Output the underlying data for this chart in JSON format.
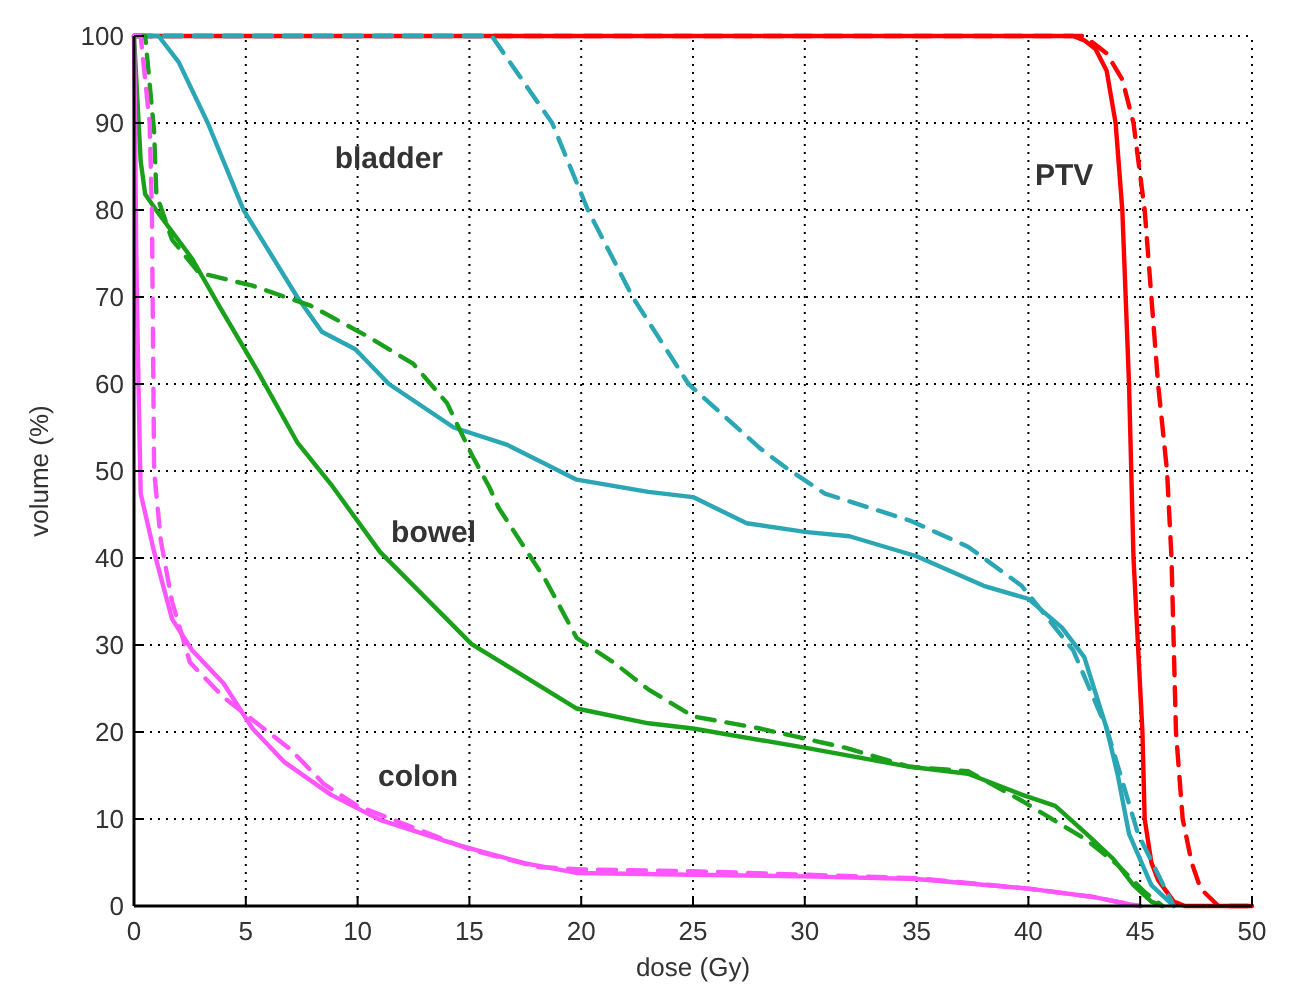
{
  "chart_data": {
    "type": "line",
    "xlabel": "dose (Gy)",
    "ylabel": "volume (%)",
    "xlim": [
      0,
      50
    ],
    "ylim": [
      0,
      100
    ],
    "xticks": [
      0,
      5,
      10,
      15,
      20,
      25,
      30,
      35,
      40,
      45,
      50
    ],
    "yticks": [
      0,
      10,
      20,
      30,
      40,
      50,
      60,
      70,
      80,
      90,
      100
    ],
    "grid": true,
    "marker": "none",
    "series": [
      {
        "color": "#ff0000",
        "line_style": "solid",
        "x": [
          0,
          42,
          42.5,
          43,
          43.5,
          43.9,
          44.2,
          44.5,
          44.7,
          45.1,
          45.2,
          45.5,
          45.8,
          46.5,
          47,
          50
        ],
        "values": [
          100,
          100,
          99.5,
          98.5,
          96,
          90,
          80,
          60,
          40,
          20,
          10,
          5,
          3,
          0.5,
          0,
          0
        ]
      },
      {
        "color": "#ff0000",
        "line_style": "dashed",
        "x": [
          0,
          42.5,
          43.5,
          44.2,
          44.7,
          45.2,
          45.8,
          46.2,
          46.4,
          46.6,
          46.9,
          47.3,
          47.7,
          48.5,
          50
        ],
        "values": [
          100,
          100,
          98,
          95,
          90,
          80,
          60,
          50,
          40,
          20,
          10,
          5,
          2,
          0,
          0
        ]
      },
      {
        "color": "#2aa6b4",
        "line_style": "solid",
        "x": [
          0,
          1.1,
          2,
          3.3,
          4.9,
          7.3,
          8.4,
          9.9,
          11.4,
          14.3,
          16.7,
          19.8,
          23,
          25,
          27.4,
          30,
          32,
          35,
          38,
          40,
          41.5,
          42.5,
          43.5,
          44,
          44.5,
          45.5,
          46.5
        ],
        "values": [
          100,
          100,
          97,
          90,
          80,
          70,
          66,
          64,
          60,
          55,
          53,
          49,
          47.6,
          47,
          44,
          43,
          42.5,
          40.2,
          36.8,
          35.3,
          32,
          28.6,
          20.4,
          15,
          8.3,
          2.4,
          0
        ]
      },
      {
        "color": "#2aa6b4",
        "line_style": "dashed",
        "x": [
          0,
          16,
          18.7,
          20.3,
          22.3,
          24.8,
          28,
          29.2,
          30.9,
          34.7,
          37.3,
          39.7,
          42,
          43.5,
          44.9,
          46.5
        ],
        "values": [
          100,
          100,
          90,
          80,
          70,
          60,
          52.6,
          50.3,
          47.4,
          44.3,
          41.3,
          36.8,
          29.4,
          20.4,
          8.3,
          0
        ]
      },
      {
        "color": "#1aa01a",
        "line_style": "solid",
        "x": [
          0,
          0.3,
          0.5,
          1.1,
          2.6,
          3.8,
          5.5,
          7.3,
          8.8,
          11,
          15.1,
          19.8,
          23,
          25,
          30,
          34.7,
          37.3,
          39.7,
          41.2,
          42.6,
          43.8,
          44.7,
          45.5,
          46
        ],
        "values": [
          100,
          85.6,
          81.8,
          79.6,
          74.4,
          69,
          61.6,
          53.3,
          48.5,
          40.7,
          30.1,
          22.7,
          21,
          20.4,
          18.2,
          16,
          15.2,
          12.8,
          11.5,
          8.3,
          5.4,
          2.4,
          0.5,
          0
        ]
      },
      {
        "color": "#1aa01a",
        "line_style": "dashed",
        "x": [
          0,
          0.5,
          0.9,
          1,
          1.7,
          2.9,
          5.3,
          7.9,
          10.5,
          12.5,
          14,
          15.1,
          15.9,
          16.3,
          18.4,
          19.8,
          21.5,
          23,
          25,
          28,
          31.8,
          34.7,
          37.3,
          39.7,
          42.6,
          44,
          45.2,
          46
        ],
        "values": [
          100,
          100,
          89,
          81.8,
          76.6,
          72.8,
          71.3,
          69,
          65.4,
          62.3,
          57.8,
          51.9,
          48.1,
          45.8,
          37.5,
          30.8,
          27.9,
          24.9,
          21.8,
          20.4,
          18.2,
          16,
          15.5,
          12.1,
          7.6,
          4.7,
          1.6,
          0
        ]
      },
      {
        "color": "#ff55ff",
        "line_style": "solid",
        "x": [
          0,
          0.05,
          0.1,
          0.2,
          0.3,
          0.9,
          1.7,
          2.6,
          4,
          5.3,
          6.7,
          8.8,
          11,
          14.5,
          17.5,
          19.8,
          25,
          30,
          35,
          40,
          43,
          44.5,
          45
        ],
        "values": [
          100,
          90,
          75,
          60,
          47.4,
          40.7,
          33,
          29.4,
          25.6,
          20.4,
          16.6,
          12.8,
          9.9,
          7,
          4.9,
          3.8,
          3.6,
          3.4,
          3.1,
          2,
          1,
          0.2,
          0
        ]
      },
      {
        "color": "#ff55ff",
        "line_style": "dashed",
        "x": [
          0,
          0.3,
          0.7,
          0.8,
          0.9,
          1.2,
          1.7,
          2.5,
          4,
          5.5,
          7,
          8.5,
          10,
          12,
          15,
          18,
          20,
          25,
          30,
          35,
          40,
          43,
          44.5,
          45
        ],
        "values": [
          100,
          100,
          90,
          80,
          50,
          42,
          35,
          28,
          24,
          21,
          18,
          14,
          11.5,
          9.5,
          6.5,
          4.5,
          4.2,
          4,
          3.6,
          3.2,
          2,
          1,
          0.2,
          0
        ]
      }
    ],
    "annotations": [
      "bladder",
      "PTV",
      "bowel",
      "colon"
    ]
  }
}
